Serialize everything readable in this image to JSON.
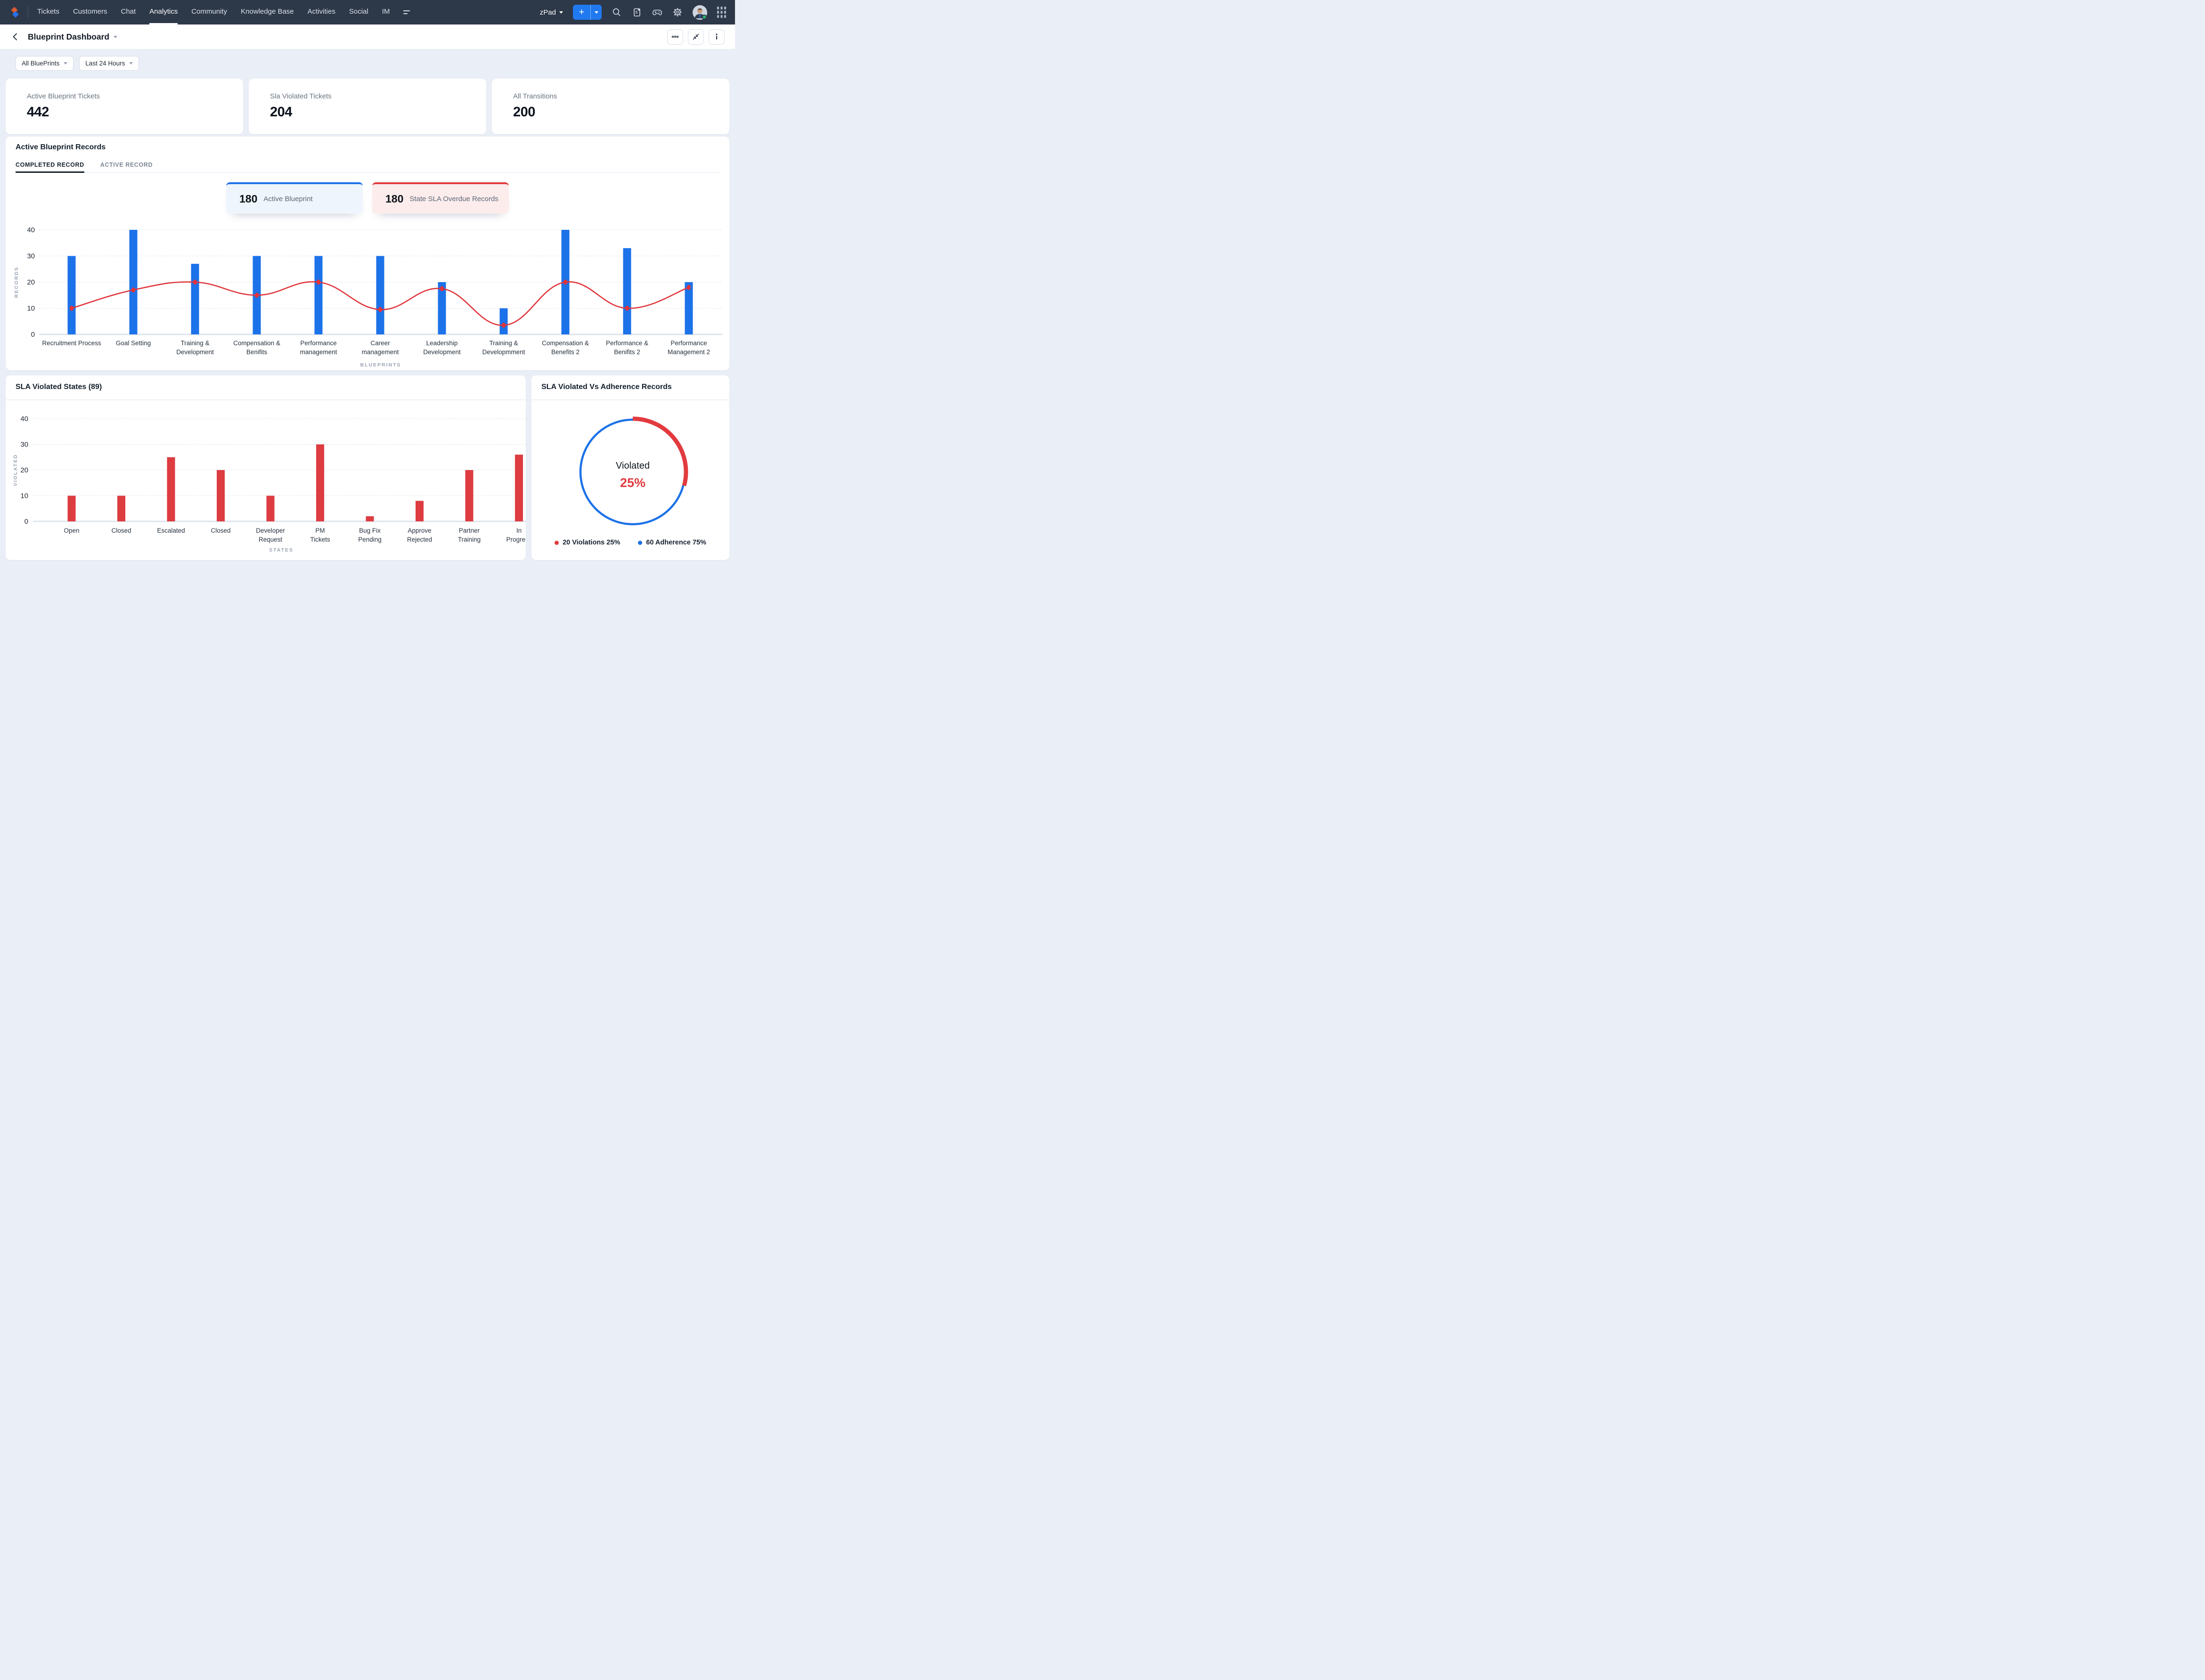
{
  "nav": {
    "items": [
      "Tickets",
      "Customers",
      "Chat",
      "Analytics",
      "Community",
      "Knowledge Base",
      "Activities",
      "Social",
      "IM"
    ],
    "active_item": "Analytics",
    "workspace_selector": "zPad"
  },
  "header": {
    "title": "Blueprint Dashboard"
  },
  "filters": [
    {
      "label": "All BluePrints"
    },
    {
      "label": "Last 24 Hours"
    }
  ],
  "kpis": [
    {
      "label": "Active Blueprint Tickets",
      "value": "442"
    },
    {
      "label": "Sla Violated Tickets",
      "value": "204"
    },
    {
      "label": "All Transitions",
      "value": "200"
    }
  ],
  "records_panel": {
    "title": "Active Blueprint Records",
    "tabs": [
      {
        "label": "COMPLETED RECORD",
        "active": true
      },
      {
        "label": "ACTIVE RECORD",
        "active": false
      }
    ],
    "badges": [
      {
        "value": "180",
        "label": "Active Blueprint",
        "accent": "#1c72e8",
        "bg": "#eef5fc"
      },
      {
        "value": "180",
        "label": "State SLA Overdue Records",
        "accent": "#e23b3f",
        "bg": "#fcecec"
      }
    ]
  },
  "chart_data": [
    {
      "type": "bar+line",
      "title": "Active Blueprint Records — Completed Record",
      "categories": [
        [
          "Recruitment Process"
        ],
        [
          "Goal Setting"
        ],
        [
          "Training &",
          "Development"
        ],
        [
          "Compensation &",
          "Benifits"
        ],
        [
          "Performance",
          "management"
        ],
        [
          "Career",
          "management"
        ],
        [
          "Leadership",
          "Development"
        ],
        [
          "Training &",
          "Developmment"
        ],
        [
          "Compensation &",
          "Benefits 2"
        ],
        [
          "Performance &",
          "Benifits 2"
        ],
        [
          "Performance",
          "Management 2"
        ]
      ],
      "series": [
        {
          "name": "Records",
          "type": "bar",
          "color": "#1c72e8",
          "values": [
            30,
            40,
            27,
            30,
            30,
            30,
            20,
            10,
            40,
            33,
            20
          ]
        },
        {
          "name": "Trend",
          "type": "line",
          "color": "#e0343b",
          "values": [
            10,
            17,
            20,
            15,
            20,
            9.5,
            17.5,
            3.5,
            20,
            10,
            18
          ]
        }
      ],
      "xlabel": "BLUEPRINTS",
      "ylabel": "RECORDS",
      "ylim": [
        0,
        40
      ],
      "yticks": [
        0,
        10,
        20,
        30,
        40
      ],
      "grid": "dotted-horizontal",
      "legend_position": "none"
    },
    {
      "type": "bar",
      "title": "SLA Violated States (89)",
      "categories": [
        [
          "Open"
        ],
        [
          "Closed"
        ],
        [
          "Escalated"
        ],
        [
          "Closed"
        ],
        [
          "Developer",
          "Request"
        ],
        [
          "PM",
          "Tickets"
        ],
        [
          "Bug Fix",
          "Pending"
        ],
        [
          "Approve",
          "Rejected"
        ],
        [
          "Partner",
          "Training"
        ],
        [
          "In",
          "Progress"
        ]
      ],
      "values": [
        10,
        10,
        25,
        20,
        10,
        30,
        2,
        8,
        20,
        26
      ],
      "color": "#dd3c41",
      "xlabel": "STATES",
      "ylabel": "VIOLATED",
      "ylim": [
        0,
        40
      ],
      "yticks": [
        0,
        10,
        20,
        30,
        40
      ],
      "grid": "dotted-horizontal",
      "legend_position": "none"
    },
    {
      "type": "donut",
      "title": "SLA Violated Vs Adherence Records",
      "center_label": "Violated",
      "center_value": "25%",
      "slices": [
        {
          "label": "Violations",
          "count": 20,
          "pct": 25,
          "color": "#e23b3f",
          "legend": "20 Violations 25%"
        },
        {
          "label": "Adherence",
          "count": 60,
          "pct": 75,
          "color": "#1c72e8",
          "legend": "60 Adherence 75%"
        }
      ],
      "legend_position": "bottom"
    }
  ]
}
